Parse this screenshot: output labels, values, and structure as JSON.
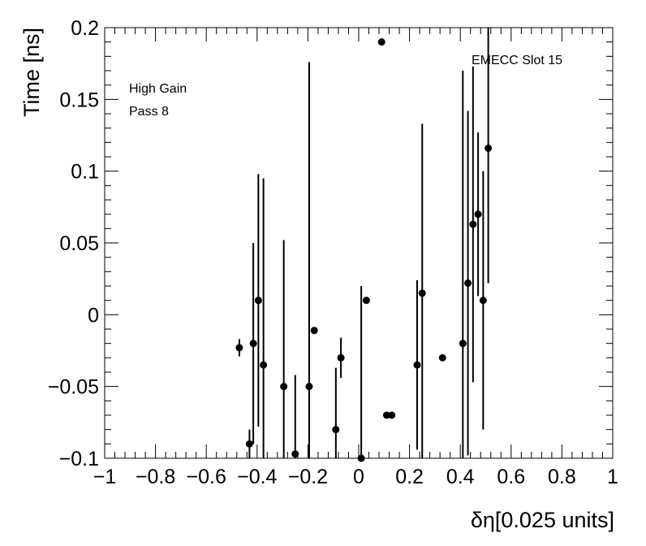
{
  "chart_data": {
    "type": "scatter",
    "xlabel": "δη[0.025 units]",
    "ylabel": "Time [ns]",
    "xlim": [
      -1,
      1
    ],
    "ylim": [
      -0.1,
      0.2
    ],
    "x_ticks": [
      -1,
      -0.8,
      -0.6,
      -0.4,
      -0.2,
      0,
      0.2,
      0.4,
      0.6,
      0.8,
      1
    ],
    "x_tick_labels": [
      "−1",
      "−0.8",
      "−0.6",
      "−0.4",
      "−0.2",
      "0",
      "0.2",
      "0.4",
      "0.6",
      "0.8",
      "1"
    ],
    "y_ticks": [
      -0.1,
      -0.05,
      0,
      0.05,
      0.1,
      0.15,
      0.2
    ],
    "y_tick_labels": [
      "−0.1",
      "−0.05",
      "0",
      "0.05",
      "0.1",
      "0.15",
      "0.2"
    ],
    "annotations": [
      "High Gain",
      "Pass 8",
      "EMECC Slot 15"
    ],
    "grid": false,
    "marker_color": "#000000",
    "series": [
      {
        "points": [
          {
            "x": -0.47,
            "y": -0.023,
            "err": 0.006
          },
          {
            "x": -0.43,
            "y": -0.09,
            "err": 0.01
          },
          {
            "x": -0.415,
            "y": -0.02,
            "err": 0.07
          },
          {
            "x": -0.395,
            "y": 0.01,
            "err": 0.088
          },
          {
            "x": -0.375,
            "y": -0.035,
            "err": 0.13
          },
          {
            "x": -0.295,
            "y": -0.05,
            "err": 0.102
          },
          {
            "x": -0.25,
            "y": -0.097,
            "err": 0.055
          },
          {
            "x": -0.195,
            "y": -0.05,
            "err": 0.226
          },
          {
            "x": -0.175,
            "y": -0.011,
            "err": 0.0
          },
          {
            "x": -0.09,
            "y": -0.08,
            "err": 0.043
          },
          {
            "x": -0.07,
            "y": -0.03,
            "err": 0.014
          },
          {
            "x": 0.01,
            "y": -0.1,
            "err": 0.12
          },
          {
            "x": 0.03,
            "y": 0.01,
            "err": 0.0
          },
          {
            "x": 0.09,
            "y": 0.19,
            "err": 0.0
          },
          {
            "x": 0.11,
            "y": -0.07,
            "err": 0.0
          },
          {
            "x": 0.13,
            "y": -0.07,
            "err": 0.0
          },
          {
            "x": 0.23,
            "y": -0.035,
            "err": 0.059
          },
          {
            "x": 0.25,
            "y": 0.015,
            "err": 0.118
          },
          {
            "x": 0.33,
            "y": -0.03,
            "err": 0.0
          },
          {
            "x": 0.41,
            "y": -0.02,
            "err": 0.19
          },
          {
            "x": 0.43,
            "y": 0.022,
            "err": 0.12
          },
          {
            "x": 0.45,
            "y": 0.063,
            "err": 0.11
          },
          {
            "x": 0.47,
            "y": 0.07,
            "err": 0.057
          },
          {
            "x": 0.49,
            "y": 0.01,
            "err": 0.09
          },
          {
            "x": 0.51,
            "y": 0.116,
            "err": 0.094
          }
        ]
      }
    ]
  }
}
